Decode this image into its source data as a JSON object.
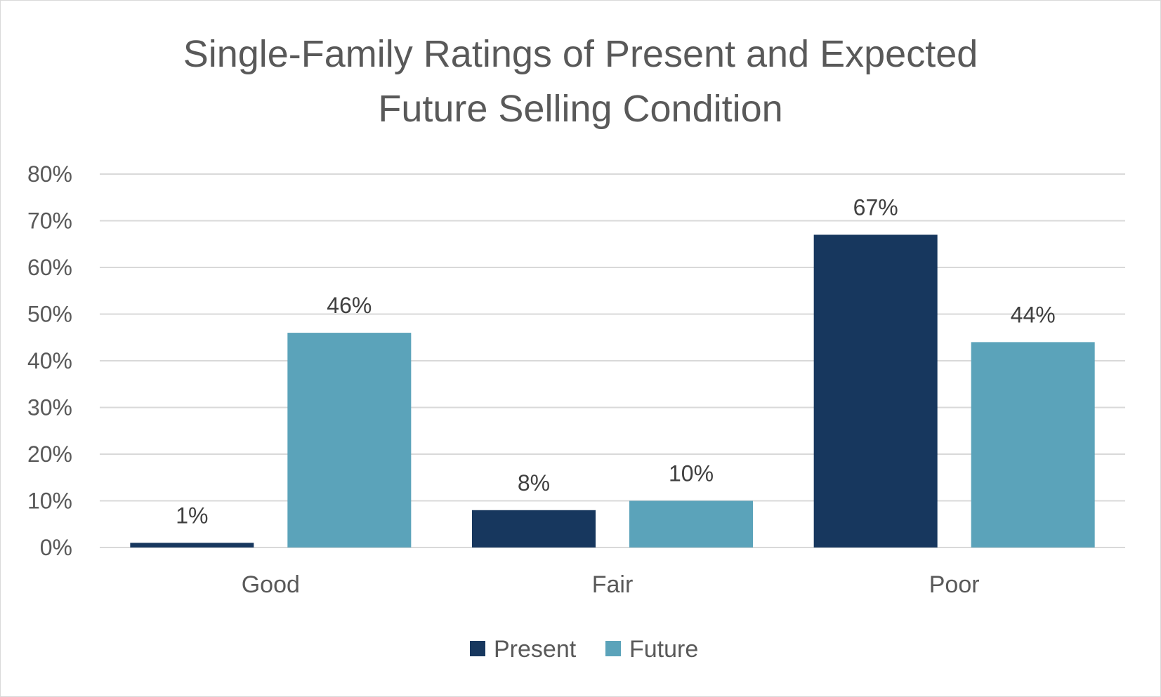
{
  "chart_data": {
    "type": "bar",
    "title": "Single-Family Ratings of Present and Expected Future Selling Condition",
    "title_lines": [
      "Single-Family Ratings of Present and Expected",
      "Future Selling Condition"
    ],
    "xlabel": "",
    "ylabel": "",
    "categories": [
      "Good",
      "Fair",
      "Poor"
    ],
    "series": [
      {
        "name": "Present",
        "color": "#17375e",
        "values": [
          1,
          8,
          67
        ],
        "labels": [
          "1%",
          "8%",
          "67%"
        ]
      },
      {
        "name": "Future",
        "color": "#5ba3ba",
        "values": [
          46,
          10,
          44
        ],
        "labels": [
          "46%",
          "10%",
          "44%"
        ]
      }
    ],
    "ylim": [
      0,
      80
    ],
    "yticks": [
      0,
      10,
      20,
      30,
      40,
      50,
      60,
      70,
      80
    ],
    "ytick_labels": [
      "0%",
      "10%",
      "20%",
      "30%",
      "40%",
      "50%",
      "60%",
      "70%",
      "80%"
    ],
    "grid": true,
    "legend_position": "bottom"
  }
}
